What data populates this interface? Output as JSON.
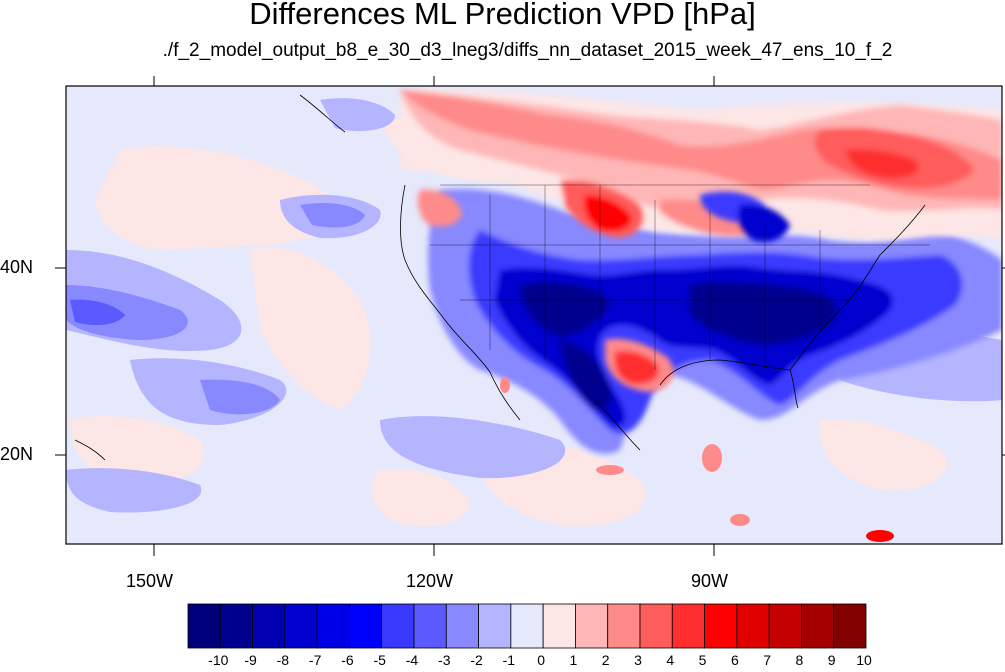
{
  "title": "Differences ML Prediction VPD [hPa]",
  "subtitle": "./f_2_model_output_b8_e_30_d3_lneg3/diffs_nn_dataset_2015_week_47_ens_10_f_2",
  "lat_labels": [
    "40N",
    "20N"
  ],
  "lon_labels": [
    "150W",
    "120W",
    "90W"
  ],
  "colorbar": {
    "labels": [
      "-10",
      "-9",
      "-8",
      "-7",
      "-6",
      "-5",
      "-4",
      "-3",
      "-2",
      "-1",
      "0",
      "1",
      "2",
      "3",
      "4",
      "5",
      "6",
      "7",
      "8",
      "9",
      "10"
    ],
    "colors": [
      "#00007a",
      "#00008f",
      "#0000b0",
      "#0000cf",
      "#0000e6",
      "#0000ff",
      "#3a3aff",
      "#5a5aff",
      "#8888ff",
      "#b4b4ff",
      "#e6e8fb",
      "#fde6e6",
      "#ffb6b6",
      "#ff8a8a",
      "#ff5c5c",
      "#ff2e2e",
      "#ff0000",
      "#e00000",
      "#c40000",
      "#a50000",
      "#820000"
    ]
  }
}
